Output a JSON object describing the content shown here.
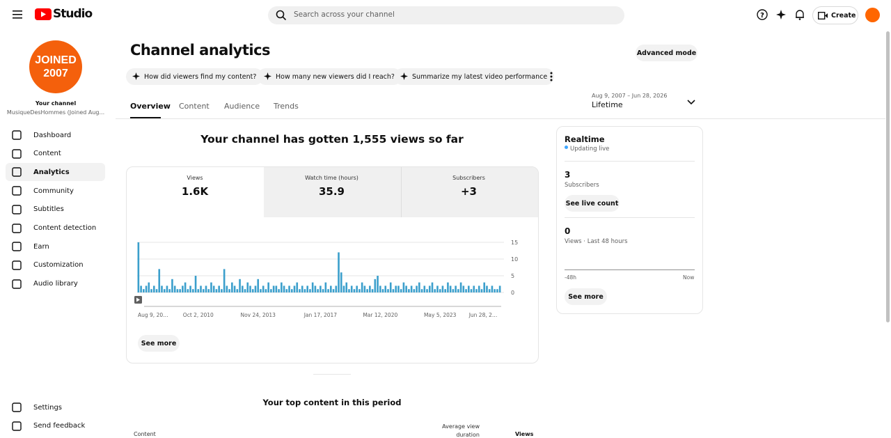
{
  "header": {
    "logo": "Studio",
    "search_placeholder": "Search across your channel",
    "create": "Create"
  },
  "sidebar": {
    "avatar_text": [
      "JOINED",
      "2007"
    ],
    "channel_label": "Your channel",
    "channel_name": "MusiqueDesHommes (Joined Aug...",
    "nav": [
      "Dashboard",
      "Content",
      "Analytics",
      "Community",
      "Subtitles",
      "Content detection",
      "Earn",
      "Customization",
      "Audio library"
    ],
    "footer": [
      "Settings",
      "Send feedback"
    ]
  },
  "page": {
    "title": "Channel analytics",
    "advanced": "Advanced mode",
    "chips": [
      "How did viewers find my content?",
      "How many new viewers did I reach?",
      "Summarize my latest video performance"
    ],
    "tabs": [
      "Overview",
      "Content",
      "Audience",
      "Trends"
    ],
    "date_range": "Aug 9, 2007 – Jun 28, 2026",
    "period": "Lifetime",
    "summary": "Your channel has gotten 1,555 views so far"
  },
  "metrics": [
    {
      "label": "Views",
      "value": "1.6K"
    },
    {
      "label": "Watch time (hours)",
      "value": "35.9"
    },
    {
      "label": "Subscribers",
      "value": "+3"
    }
  ],
  "chart_data": {
    "type": "bar",
    "color": "#3b9fcc",
    "grid": true,
    "ylim": [
      0,
      15
    ],
    "yticks": [
      0,
      5,
      10,
      15
    ],
    "categories": [
      "Aug 9, 20…",
      null,
      null,
      null,
      null,
      null,
      null,
      null,
      null,
      null,
      null,
      null,
      null,
      null,
      null,
      null,
      null,
      null,
      null,
      null,
      null,
      null,
      null,
      "Oct 2, 2010",
      null,
      null,
      null,
      null,
      null,
      null,
      null,
      null,
      null,
      null,
      null,
      null,
      null,
      null,
      null,
      null,
      null,
      null,
      null,
      null,
      null,
      null,
      "Nov 24, 2013",
      null,
      null,
      null,
      null,
      null,
      null,
      null,
      null,
      null,
      null,
      null,
      null,
      null,
      null,
      null,
      null,
      null,
      null,
      null,
      null,
      null,
      null,
      null,
      "Jan 17, 2017",
      null,
      null,
      null,
      null,
      null,
      null,
      null,
      null,
      null,
      null,
      null,
      null,
      null,
      null,
      null,
      null,
      null,
      null,
      null,
      null,
      null,
      null,
      "Mar 12, 2020",
      null,
      null,
      null,
      null,
      null,
      null,
      null,
      null,
      null,
      null,
      null,
      null,
      null,
      null,
      null,
      null,
      null,
      null,
      null,
      null,
      null,
      null,
      "May 5, 2023",
      null,
      null,
      null,
      null,
      null,
      null,
      null,
      null,
      null,
      null,
      null,
      null,
      null,
      null,
      null,
      null,
      null,
      null,
      null,
      null,
      null,
      "Jun 28, 2…",
      null
    ],
    "values": [
      15,
      2,
      1,
      2,
      3,
      1,
      2,
      1,
      7,
      2,
      1,
      2,
      1,
      4,
      2,
      1,
      1,
      2,
      3,
      1,
      2,
      1,
      5,
      1,
      2,
      1,
      2,
      1,
      3,
      2,
      1,
      2,
      1,
      7,
      2,
      1,
      3,
      2,
      1,
      4,
      2,
      1,
      3,
      2,
      1,
      2,
      4,
      1,
      2,
      1,
      3,
      1,
      2,
      2,
      1,
      3,
      2,
      1,
      2,
      1,
      2,
      3,
      1,
      2,
      1,
      2,
      1,
      3,
      2,
      1,
      2,
      1,
      3,
      1,
      2,
      1,
      2,
      12,
      6,
      2,
      3,
      1,
      2,
      1,
      2,
      1,
      3,
      2,
      1,
      2,
      1,
      4,
      5,
      2,
      1,
      2,
      1,
      3,
      1,
      2,
      2,
      1,
      3,
      2,
      1,
      2,
      1,
      2,
      3,
      1,
      2,
      1,
      2,
      3,
      1,
      2,
      1,
      2,
      1,
      3,
      2,
      1,
      2,
      1,
      3,
      2,
      1,
      2,
      1,
      2,
      1,
      2,
      1,
      3,
      2,
      1,
      2,
      1,
      1,
      2
    ]
  },
  "see_more": "See more",
  "realtime": {
    "title": "Realtime",
    "status": "Updating live",
    "subs_value": "3",
    "subs_label": "Subscribers",
    "live_count": "See live count",
    "views_value": "0",
    "views_label": "Views · Last 48 hours",
    "axis_start": "-48h",
    "axis_end": "Now",
    "see_more": "See more"
  },
  "top_content": {
    "title": "Your top content in this period",
    "columns": [
      "Content",
      "Average view duration",
      "Views"
    ]
  }
}
